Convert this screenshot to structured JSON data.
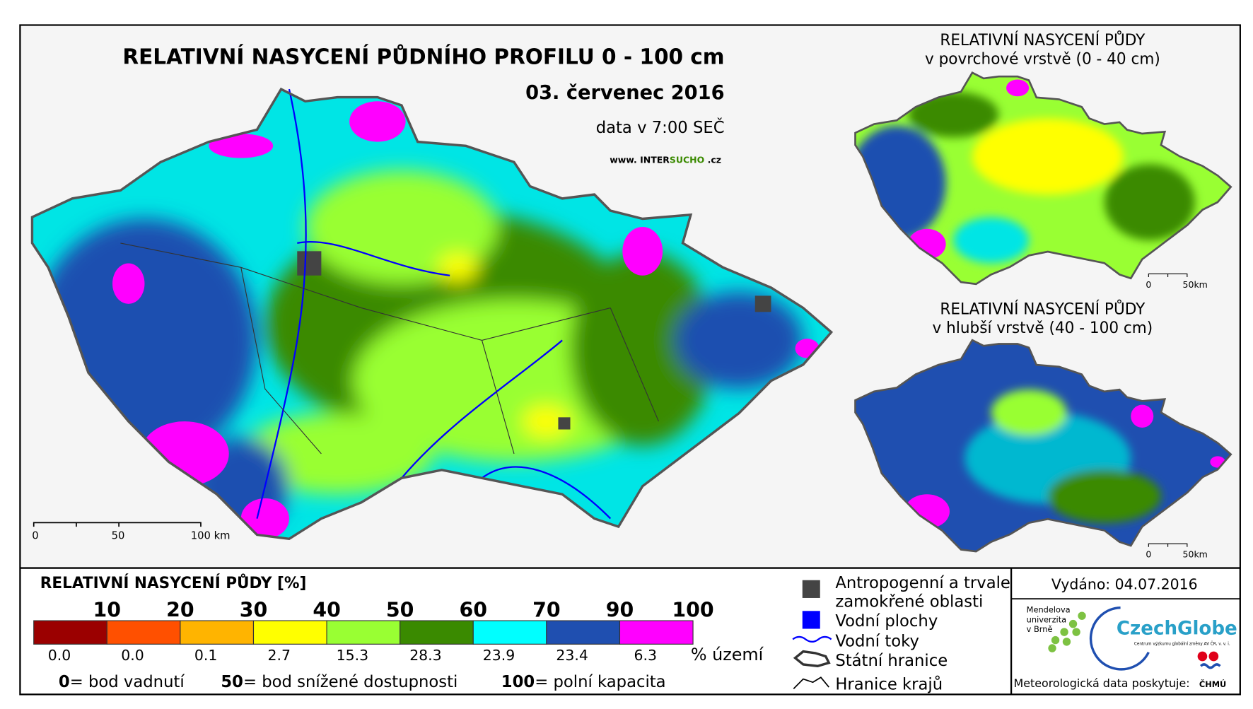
{
  "title": "RELATIVNÍ NASYCENÍ PŮDNÍHO PROFILU 0 - 100 cm",
  "date": "03. červenec 2016",
  "data_time": "data v 7:00 SEČ",
  "website": [
    "www. INTER",
    "SUCHO",
    " .cz"
  ],
  "main_scale": [
    "0",
    "50",
    "100 km"
  ],
  "insets": [
    {
      "title_lines": [
        "RELATIVNÍ NASYCENÍ PŮDY",
        "v povrchové vrstvě (0 - 40 cm)"
      ],
      "scale": [
        "0",
        "50km"
      ]
    },
    {
      "title_lines": [
        "RELATIVNÍ NASYCENÍ PŮDY",
        "v hlubší vrstvě (40 - 100 cm)"
      ],
      "scale": [
        "0",
        "50km"
      ]
    }
  ],
  "legend": {
    "title": "RELATIVNÍ NASYCENÍ PŮDY [%]",
    "thresholds": [
      10,
      20,
      30,
      40,
      50,
      60,
      70,
      90,
      100
    ],
    "classes": [
      {
        "color": "#9b0000",
        "share": "0.0"
      },
      {
        "color": "#ff5000",
        "share": "0.0"
      },
      {
        "color": "#ffb400",
        "share": "0.1"
      },
      {
        "color": "#ffff00",
        "share": "2.7"
      },
      {
        "color": "#99ff33",
        "share": "15.3"
      },
      {
        "color": "#3a8a00",
        "share": "28.3"
      },
      {
        "color": "#00ffff",
        "share": "23.9"
      },
      {
        "color": "#1f4fb0",
        "share": "23.4"
      },
      {
        "color": "#ff00ff",
        "share": "6.3"
      }
    ],
    "share_unit": "% území",
    "notes": [
      {
        "value": "0",
        "text": "= bod vadnutí"
      },
      {
        "value": "50",
        "text": "= bod snížené dostupnosti"
      },
      {
        "value": "100",
        "text": "= polní kapacita"
      }
    ]
  },
  "symbols": [
    [
      "Antropogenní a trvale",
      "zamokřené oblasti"
    ],
    [
      "Vodní plochy"
    ],
    [
      "Vodní toky"
    ],
    [
      "Státní hranice"
    ],
    [
      "Hranice krajů"
    ]
  ],
  "issued": "Vydáno: 04.07.2016",
  "logos": {
    "mendel": [
      "Mendelova",
      "univerzita",
      "v Brně"
    ],
    "czechglobe": "CzechGlobe",
    "czechglobe_sub": "Centrum výzkumu globální změny AV ČR, v. v. i.",
    "provider": "Meteorologická data poskytuje:",
    "chmu": "ČHMÚ"
  }
}
